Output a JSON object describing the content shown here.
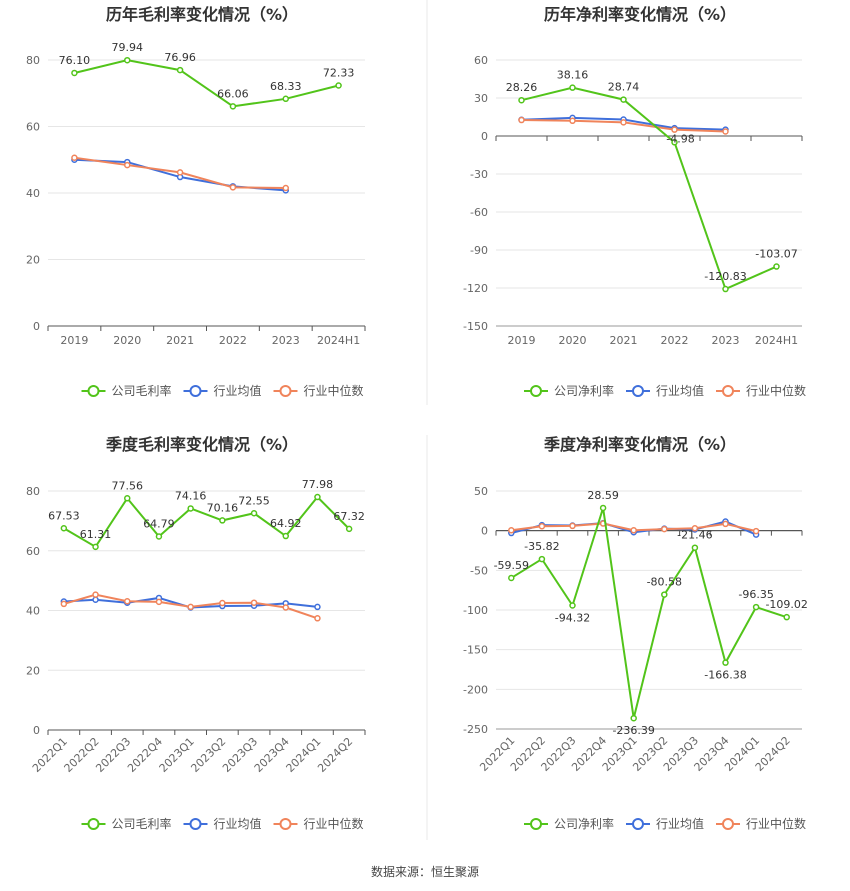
{
  "source": "数据来源：恒生聚源",
  "colors": {
    "company": "#52c41a",
    "avg": "#3f6fdb",
    "median": "#f0845b"
  },
  "chart_data": [
    {
      "type": "line",
      "title": "历年毛利率变化情况（%）",
      "categories": [
        "2019",
        "2020",
        "2021",
        "2022",
        "2023",
        "2024H1"
      ],
      "ylim": [
        0,
        80
      ],
      "yticks": [
        0,
        20,
        40,
        60,
        80
      ],
      "grid": true,
      "legend": "bottom",
      "series": [
        {
          "name": "公司毛利率",
          "key": "company",
          "values": [
            76.1,
            79.94,
            76.96,
            66.06,
            68.33,
            72.33
          ],
          "labels": [
            "76.10",
            "79.94",
            "76.96",
            "66.06",
            "68.33",
            "72.33"
          ]
        },
        {
          "name": "行业均值",
          "key": "avg",
          "values": [
            50.0,
            49.3,
            44.8,
            42.0,
            40.8,
            null
          ]
        },
        {
          "name": "行业中位数",
          "key": "median",
          "values": [
            50.6,
            48.4,
            46.2,
            41.7,
            41.5,
            null
          ]
        }
      ]
    },
    {
      "type": "line",
      "title": "历年净利率变化情况（%）",
      "categories": [
        "2019",
        "2020",
        "2021",
        "2022",
        "2023",
        "2024H1"
      ],
      "ylim": [
        -150,
        60
      ],
      "yticks": [
        -150,
        -120,
        -90,
        -60,
        -30,
        0,
        30,
        60
      ],
      "grid": true,
      "legend": "bottom",
      "series": [
        {
          "name": "公司净利率",
          "key": "company",
          "values": [
            28.26,
            38.16,
            28.74,
            -4.98,
            -120.83,
            -103.07
          ],
          "labels": [
            "28.26",
            "38.16",
            "28.74",
            "-4.98",
            "-120.83",
            "-103.07"
          ]
        },
        {
          "name": "行业均值",
          "key": "avg",
          "values": [
            12.8,
            14.3,
            13.0,
            6.2,
            5.0,
            null
          ]
        },
        {
          "name": "行业中位数",
          "key": "median",
          "values": [
            12.6,
            12.0,
            10.8,
            5.0,
            3.6,
            null
          ]
        }
      ]
    },
    {
      "type": "line",
      "title": "季度毛利率变化情况（%）",
      "categories": [
        "2022Q1",
        "2022Q2",
        "2022Q3",
        "2022Q4",
        "2023Q1",
        "2023Q2",
        "2023Q3",
        "2023Q4",
        "2024Q1",
        "2024Q2"
      ],
      "ylim": [
        0,
        80
      ],
      "yticks": [
        0,
        20,
        40,
        60,
        80
      ],
      "grid": true,
      "legend": "bottom",
      "series": [
        {
          "name": "公司毛利率",
          "key": "company",
          "values": [
            67.53,
            61.31,
            77.56,
            64.79,
            74.16,
            70.16,
            72.55,
            64.92,
            77.98,
            67.32
          ],
          "labels": [
            "67.53",
            "61.31",
            "77.56",
            "64.79",
            "74.16",
            "70.16",
            "72.55",
            "64.92",
            "77.98",
            "67.32"
          ]
        },
        {
          "name": "行业均值",
          "key": "avg",
          "values": [
            43.0,
            43.6,
            42.6,
            44.2,
            41.0,
            41.5,
            41.6,
            42.4,
            41.2,
            null
          ]
        },
        {
          "name": "行业中位数",
          "key": "median",
          "values": [
            42.2,
            45.3,
            43.1,
            42.9,
            41.2,
            42.5,
            42.6,
            41.0,
            37.4,
            null
          ]
        }
      ]
    },
    {
      "type": "line",
      "title": "季度净利率变化情况（%）",
      "categories": [
        "2022Q1",
        "2022Q2",
        "2022Q3",
        "2022Q4",
        "2023Q1",
        "2023Q2",
        "2023Q3",
        "2023Q4",
        "2024Q1",
        "2024Q2"
      ],
      "ylim": [
        -250,
        50
      ],
      "yticks": [
        -250,
        -200,
        -150,
        -100,
        -50,
        0,
        50
      ],
      "grid": true,
      "legend": "bottom",
      "series": [
        {
          "name": "公司净利率",
          "key": "company",
          "values": [
            -59.59,
            -35.82,
            -94.32,
            28.59,
            -236.39,
            -80.58,
            -21.46,
            -166.38,
            -96.35,
            -109.02
          ],
          "labels": [
            "-59.59",
            "-35.82",
            "-94.32",
            "28.59",
            "-236.39",
            "-80.58",
            "-21.46",
            "-166.38",
            "-96.35",
            "-109.02"
          ]
        },
        {
          "name": "行业均值",
          "key": "avg",
          "values": [
            -3.0,
            7.0,
            6.5,
            9.5,
            -2.0,
            2.5,
            1.5,
            11.5,
            -5.0,
            null
          ]
        },
        {
          "name": "行业中位数",
          "key": "median",
          "values": [
            0.5,
            5.5,
            6.0,
            9.0,
            0.5,
            2.0,
            3.0,
            8.5,
            -0.5,
            null
          ]
        }
      ]
    }
  ]
}
